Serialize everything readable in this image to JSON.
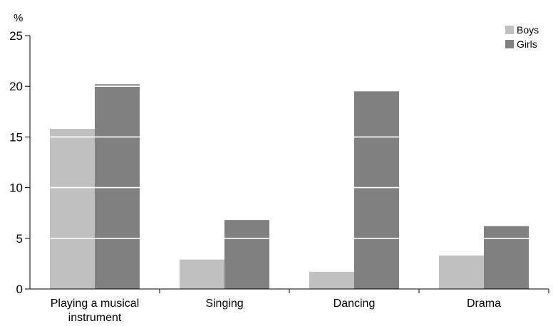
{
  "chart_data": {
    "type": "bar",
    "y_unit": "%",
    "categories": [
      [
        "Playing a musical",
        "instrument"
      ],
      [
        "Singing"
      ],
      [
        "Dancing"
      ],
      [
        "Drama"
      ]
    ],
    "series": [
      {
        "name": "Boys",
        "values": [
          15.8,
          2.9,
          1.7,
          3.3
        ],
        "color": "#c0c0c0"
      },
      {
        "name": "Girls",
        "values": [
          20.2,
          6.8,
          19.5,
          6.2
        ],
        "color": "#808080"
      }
    ],
    "ylim": [
      0,
      25
    ],
    "yticks": [
      0,
      5,
      10,
      15,
      20,
      25
    ],
    "gridlines": "white lines drawn over bars",
    "legend_position": "top-right"
  }
}
